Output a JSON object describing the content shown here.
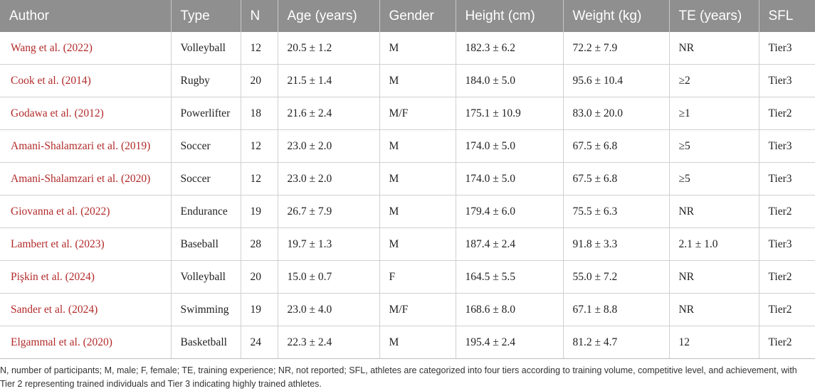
{
  "table": {
    "headers": [
      "Author",
      "Type",
      "N",
      "Age (years)",
      "Gender",
      "Height (cm)",
      "Weight (kg)",
      "TE (years)",
      "SFL"
    ],
    "rows": [
      [
        "Wang et al. (2022)",
        "Volleyball",
        "12",
        "20.5 ± 1.2",
        "M",
        "182.3 ± 6.2",
        "72.2 ± 7.9",
        "NR",
        "Tier3"
      ],
      [
        "Cook et al. (2014)",
        "Rugby",
        "20",
        "21.5 ± 1.4",
        "M",
        "184.0 ± 5.0",
        "95.6 ± 10.4",
        "≥2",
        "Tier3"
      ],
      [
        "Godawa et al. (2012)",
        "Powerlifter",
        "18",
        "21.6 ± 2.4",
        "M/F",
        "175.1 ± 10.9",
        "83.0 ± 20.0",
        "≥1",
        "Tier2"
      ],
      [
        "Amani-Shalamzari et al. (2019)",
        "Soccer",
        "12",
        "23.0 ± 2.0",
        "M",
        "174.0 ± 5.0",
        "67.5 ± 6.8",
        "≥5",
        "Tier3"
      ],
      [
        "Amani-Shalamzari et al. (2020)",
        "Soccer",
        "12",
        "23.0 ± 2.0",
        "M",
        "174.0 ± 5.0",
        "67.5 ± 6.8",
        "≥5",
        "Tier3"
      ],
      [
        "Giovanna et al. (2022)",
        "Endurance",
        "19",
        "26.7 ± 7.9",
        "M",
        "179.4 ± 6.0",
        "75.5 ± 6.3",
        "NR",
        "Tier2"
      ],
      [
        "Lambert et al. (2023)",
        "Baseball",
        "28",
        "19.7 ± 1.3",
        "M",
        "187.4 ± 2.4",
        "91.8 ± 3.3",
        "2.1 ± 1.0",
        "Tier3"
      ],
      [
        "Pişkin et al. (2024)",
        "Volleyball",
        "20",
        "15.0 ± 0.7",
        "F",
        "164.5 ± 5.5",
        "55.0 ± 7.2",
        "NR",
        "Tier2"
      ],
      [
        "Sander et al. (2024)",
        "Swimming",
        "19",
        "23.0 ± 4.0",
        "M/F",
        "168.6 ± 8.0",
        "67.1 ± 8.8",
        "NR",
        "Tier2"
      ],
      [
        "Elgammal et al. (2020)",
        "Basketball",
        "24",
        "22.3 ± 2.4",
        "M",
        "195.4 ± 2.4",
        "81.2 ± 4.7",
        "12",
        "Tier2"
      ]
    ]
  },
  "footnote": "N, number of participants; M, male; F, female; TE, training experience; NR, not reported; SFL, athletes are categorized into four tiers according to training volume, competitive level, and achievement, with Tier 2 representing trained individuals and Tier 3 indicating highly trained athletes.",
  "colors": {
    "header_bg": "#8f8f8f",
    "author_link": "#b22a2a"
  }
}
